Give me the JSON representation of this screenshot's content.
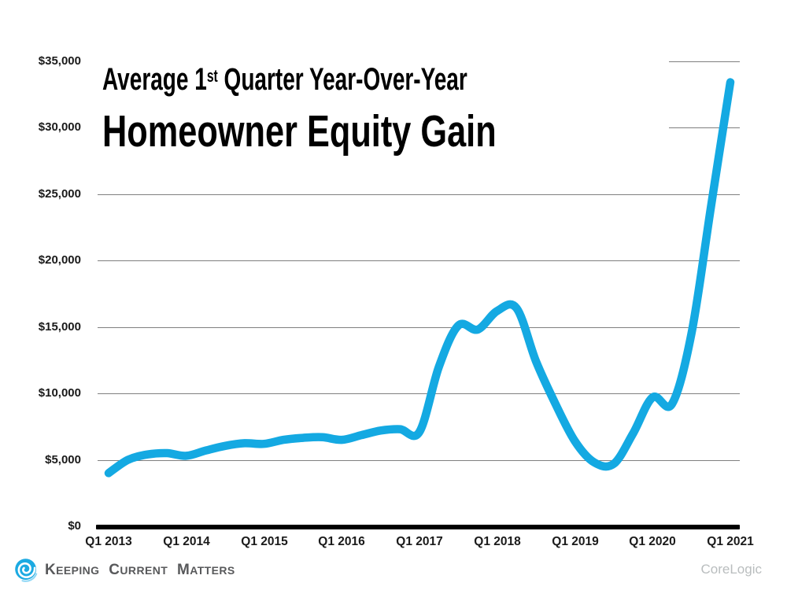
{
  "header": {
    "title_line1_pre": "Average 1",
    "title_line1_sup": "st",
    "title_line1_post": " Quarter Year-Over-Year",
    "title_line2": "Homeowner Equity Gain"
  },
  "footer": {
    "brand": [
      {
        "initial": "K",
        "rest": "EEPING"
      },
      {
        "initial": "C",
        "rest": "URRENT"
      },
      {
        "initial": "M",
        "rest": "ATTERS"
      }
    ],
    "source": "CoreLogic"
  },
  "chart_data": {
    "type": "line",
    "title": "Average 1st Quarter Year-Over-Year Homeowner Equity Gain",
    "xlabel": "",
    "ylabel": "",
    "ylim": [
      0,
      35000
    ],
    "grid": true,
    "legend": "none",
    "line_color": "#14A9E2",
    "gridline_color": "#7f7f7f",
    "y_axis": [
      {
        "value": 35000,
        "label": "$35,000"
      },
      {
        "value": 30000,
        "label": "$30,000"
      },
      {
        "value": 25000,
        "label": "$25,000"
      },
      {
        "value": 20000,
        "label": "$20,000"
      },
      {
        "value": 15000,
        "label": "$15,000"
      },
      {
        "value": 10000,
        "label": "$10,000"
      },
      {
        "value": 5000,
        "label": "$5,000"
      },
      {
        "value": 0,
        "label": "$0"
      }
    ],
    "x_axis": [
      "Q1 2013",
      "Q1 2014",
      "Q1 2015",
      "Q1 2016",
      "Q1 2017",
      "Q1 2018",
      "Q1 2019",
      "Q1 2020",
      "Q1 2021"
    ],
    "points_per_year": 4,
    "series": [
      {
        "name": "Homeowner Equity Gain",
        "x_start": "Q1 2013",
        "x_end": "Q1 2021",
        "values": [
          4000,
          5000,
          5400,
          5500,
          5300,
          5700,
          6050,
          6250,
          6200,
          6500,
          6650,
          6700,
          6500,
          6850,
          7200,
          7300,
          7100,
          12000,
          15100,
          14800,
          16200,
          16400,
          12400,
          9200,
          6400,
          4800,
          4700,
          7000,
          9700,
          9200,
          14500,
          24000,
          33400
        ]
      }
    ]
  }
}
